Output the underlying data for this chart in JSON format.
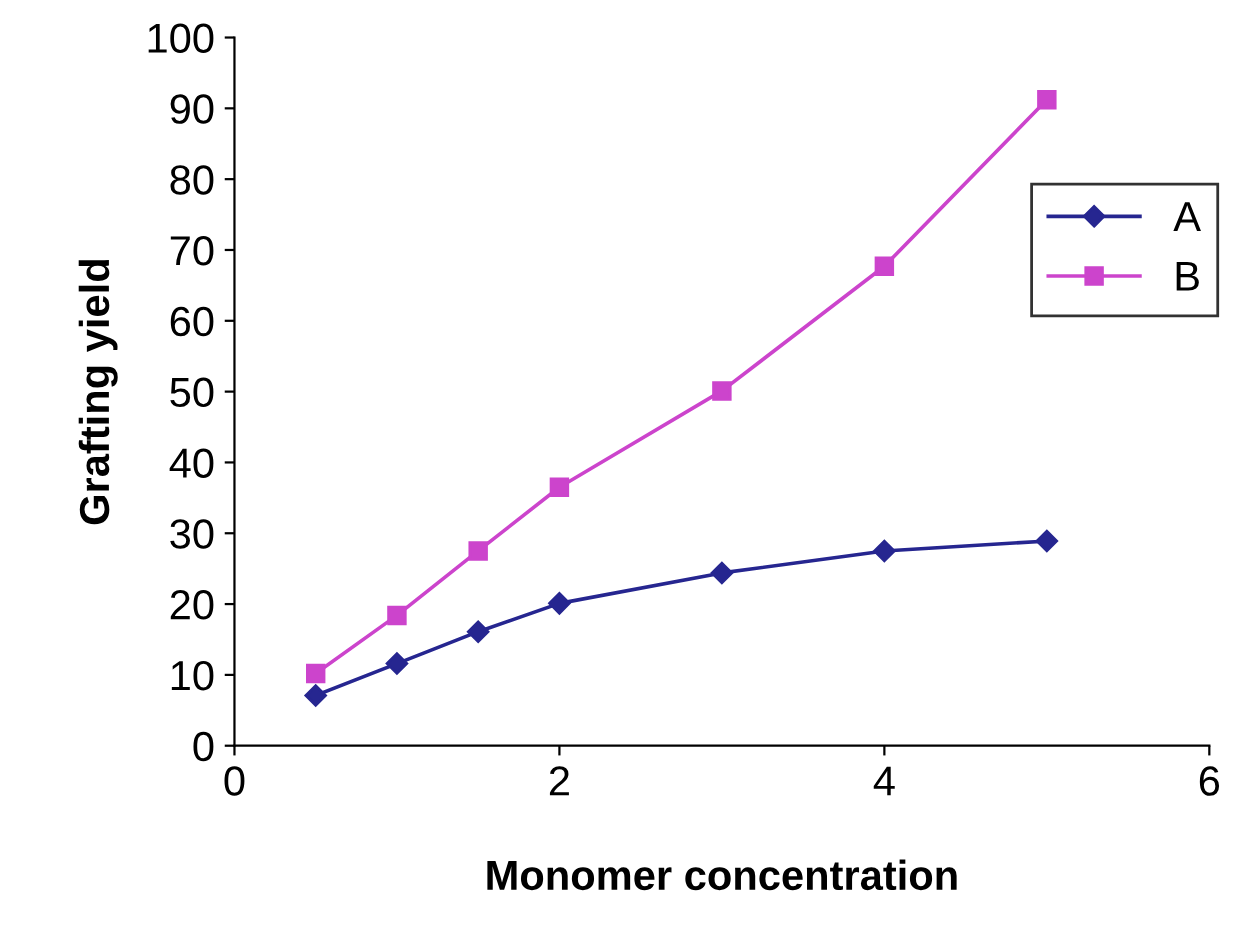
{
  "chart_data": {
    "type": "line",
    "xlabel": "Monomer concentration",
    "ylabel": "Grafting yield",
    "x": [
      0.5,
      1,
      1.5,
      2,
      3,
      4,
      5
    ],
    "series": [
      {
        "name": "A",
        "color": "#262690",
        "marker": "diamond",
        "values": [
          7.1,
          11.6,
          16.1,
          20.1,
          24.4,
          27.5,
          28.9
        ]
      },
      {
        "name": "B",
        "color": "#cc44cc",
        "marker": "square",
        "values": [
          10.2,
          18.4,
          27.5,
          36.5,
          50.1,
          67.7,
          91.2
        ]
      }
    ],
    "xlim": [
      0,
      6
    ],
    "xticks": [
      0,
      2,
      4,
      6
    ],
    "ylim": [
      0,
      100
    ],
    "yticks": [
      0,
      10,
      20,
      30,
      40,
      50,
      60,
      70,
      80,
      90,
      100
    ],
    "grid": false,
    "legend": "right",
    "line_style": "solid"
  }
}
